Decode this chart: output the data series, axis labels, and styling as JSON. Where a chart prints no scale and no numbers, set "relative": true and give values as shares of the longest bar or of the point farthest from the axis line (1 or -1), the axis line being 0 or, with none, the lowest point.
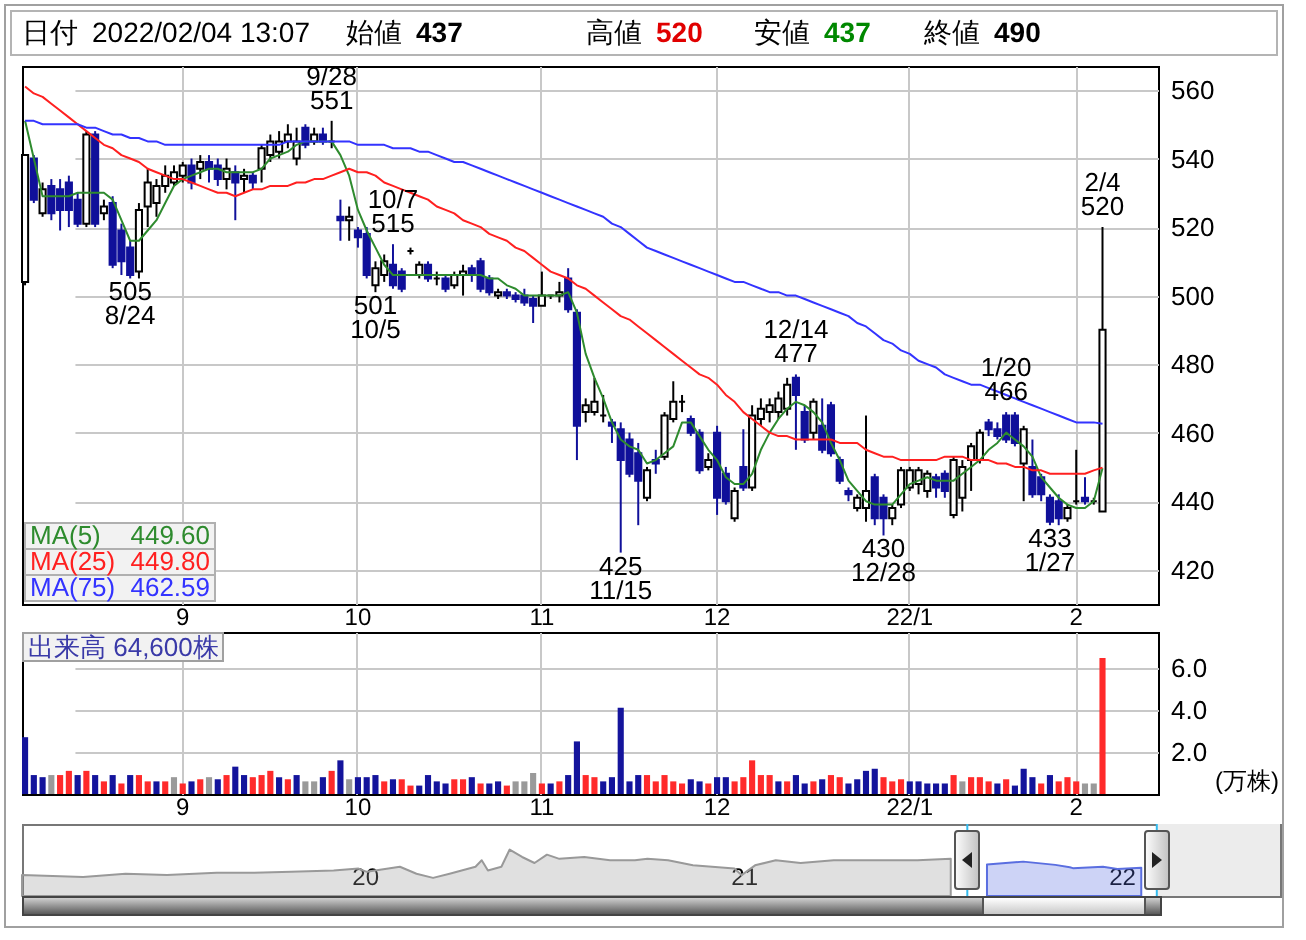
{
  "chart_data": [
    {
      "type": "candlestick",
      "categories": [
        null,
        null,
        null,
        null,
        null,
        null,
        null,
        null,
        null,
        null,
        null,
        null,
        null,
        null,
        null,
        null,
        null,
        null,
        "9",
        null,
        null,
        null,
        null,
        null,
        null,
        null,
        null,
        null,
        null,
        null,
        null,
        null,
        null,
        null,
        null,
        null,
        null,
        null,
        "10",
        null,
        null,
        null,
        null,
        null,
        null,
        null,
        null,
        null,
        null,
        null,
        null,
        null,
        null,
        null,
        null,
        null,
        null,
        null,
        null,
        "11",
        null,
        null,
        null,
        null,
        null,
        null,
        null,
        null,
        null,
        null,
        null,
        null,
        null,
        null,
        null,
        null,
        null,
        null,
        null,
        "12",
        null,
        null,
        null,
        null,
        null,
        null,
        null,
        null,
        null,
        null,
        null,
        null,
        null,
        null,
        null,
        null,
        null,
        null,
        null,
        null,
        null,
        "22/1",
        null,
        null,
        null,
        null,
        null,
        null,
        null,
        null,
        null,
        null,
        null,
        null,
        null,
        null,
        null,
        null,
        null,
        null,
        "2",
        null,
        null,
        null
      ],
      "ohlc": [
        [
          504,
          541,
          503,
          541
        ],
        [
          540,
          541,
          527,
          528
        ],
        [
          524,
          533,
          523,
          531
        ],
        [
          532,
          534,
          522,
          524
        ],
        [
          531,
          534,
          519,
          525
        ],
        [
          533,
          535,
          520,
          525
        ],
        [
          528,
          530,
          520,
          521
        ],
        [
          521,
          548,
          520,
          547
        ],
        [
          547,
          548,
          520,
          521
        ],
        [
          524,
          528,
          522,
          526
        ],
        [
          527,
          529,
          508,
          509
        ],
        [
          519,
          521,
          506,
          510
        ],
        [
          514,
          516,
          505,
          506
        ],
        [
          507,
          527,
          505,
          525
        ],
        [
          526,
          537,
          520,
          533
        ],
        [
          527,
          534,
          523,
          532
        ],
        [
          532,
          538,
          530,
          535
        ],
        [
          533,
          538,
          532,
          536
        ],
        [
          535,
          539,
          533,
          538
        ],
        [
          538,
          540,
          531,
          533
        ],
        [
          537,
          541,
          534,
          539
        ],
        [
          539,
          541,
          533,
          537
        ],
        [
          538,
          540,
          532,
          534
        ],
        [
          534,
          540,
          531,
          537
        ],
        [
          536,
          538,
          522,
          533
        ],
        [
          534,
          537,
          530,
          535
        ],
        [
          535,
          536,
          531,
          533
        ],
        [
          537,
          544,
          533,
          543
        ],
        [
          541,
          547,
          539,
          545
        ],
        [
          542,
          548,
          540,
          545
        ],
        [
          545,
          550,
          543,
          547
        ],
        [
          540,
          549,
          538,
          545
        ],
        [
          549,
          550,
          543,
          544
        ],
        [
          545,
          549,
          544,
          547
        ],
        [
          547,
          549,
          544,
          545
        ],
        [
          545,
          551,
          543,
          545
        ],
        [
          523,
          528,
          516,
          522
        ],
        [
          522,
          526,
          516,
          523
        ],
        [
          519,
          520,
          514,
          517
        ],
        [
          518,
          520,
          505,
          506
        ],
        [
          503,
          510,
          501,
          508
        ],
        [
          506,
          512,
          504,
          510
        ],
        [
          509,
          515,
          502,
          503
        ],
        [
          507,
          508,
          501,
          502
        ],
        [
          513,
          514,
          512,
          513
        ],
        [
          506,
          510,
          505,
          509
        ],
        [
          509,
          510,
          504,
          505
        ],
        [
          505,
          507,
          503,
          505
        ],
        [
          505,
          506,
          501,
          502
        ],
        [
          503,
          507,
          502,
          506
        ],
        [
          506,
          509,
          500,
          507
        ],
        [
          508,
          509,
          504,
          506
        ],
        [
          510,
          511,
          501,
          502
        ],
        [
          505,
          506,
          500,
          501
        ],
        [
          500,
          502,
          499,
          501
        ],
        [
          501,
          502,
          499,
          500
        ],
        [
          500,
          501,
          498,
          499
        ],
        [
          500,
          502,
          497,
          498
        ],
        [
          499,
          500,
          492,
          497
        ],
        [
          497,
          507,
          497,
          500
        ],
        [
          500,
          500,
          499,
          500
        ],
        [
          500,
          504,
          498,
          501
        ],
        [
          505,
          508,
          495,
          496
        ],
        [
          495,
          496,
          452,
          462
        ],
        [
          466,
          470,
          463,
          468
        ],
        [
          466,
          476,
          465,
          469
        ],
        [
          465,
          471,
          463,
          465
        ],
        [
          463,
          464,
          457,
          462
        ],
        [
          461,
          463,
          425,
          452
        ],
        [
          458,
          460,
          447,
          448
        ],
        [
          454,
          457,
          433,
          446
        ],
        [
          441,
          450,
          440,
          449
        ],
        [
          452,
          455,
          448,
          451
        ],
        [
          453,
          466,
          452,
          465
        ],
        [
          464,
          475,
          463,
          469
        ],
        [
          469,
          471,
          466,
          469
        ],
        [
          464,
          465,
          459,
          460
        ],
        [
          460,
          461,
          448,
          449
        ],
        [
          450,
          454,
          449,
          452
        ],
        [
          460,
          462,
          436,
          441
        ],
        [
          448,
          450,
          439,
          440
        ],
        [
          435,
          444,
          434,
          443
        ],
        [
          450,
          461,
          443,
          444
        ],
        [
          444,
          468,
          443,
          465
        ],
        [
          464,
          470,
          462,
          467
        ],
        [
          466,
          470,
          463,
          468
        ],
        [
          466,
          472,
          464,
          470
        ],
        [
          467,
          476,
          465,
          474
        ],
        [
          476,
          477,
          455,
          471
        ],
        [
          466,
          468,
          457,
          458
        ],
        [
          460,
          470,
          458,
          469
        ],
        [
          462,
          470,
          454,
          455
        ],
        [
          468,
          469,
          453,
          454
        ],
        [
          452,
          453,
          445,
          446
        ],
        [
          443,
          444,
          440,
          442
        ],
        [
          438,
          442,
          437,
          441
        ],
        [
          438,
          465,
          434,
          443
        ],
        [
          447,
          448,
          433,
          435
        ],
        [
          441,
          442,
          430,
          435
        ],
        [
          435,
          439,
          433,
          438
        ],
        [
          439,
          450,
          438,
          449
        ],
        [
          444,
          450,
          443,
          449
        ],
        [
          445,
          450,
          442,
          449
        ],
        [
          443,
          449,
          441,
          448
        ],
        [
          447,
          448,
          441,
          444
        ],
        [
          448,
          449,
          441,
          443
        ],
        [
          436,
          453,
          435,
          452
        ],
        [
          441,
          452,
          437,
          450
        ],
        [
          452,
          457,
          443,
          456
        ],
        [
          452,
          461,
          451,
          460
        ],
        [
          463,
          464,
          459,
          461
        ],
        [
          461,
          463,
          458,
          459
        ],
        [
          465,
          466,
          457,
          458
        ],
        [
          465,
          466,
          456,
          457
        ],
        [
          451,
          462,
          440,
          461
        ],
        [
          450,
          458,
          441,
          442
        ],
        [
          447,
          448,
          440,
          442
        ],
        [
          441,
          442,
          433,
          434
        ],
        [
          440,
          442,
          433,
          435
        ],
        [
          435,
          439,
          434,
          438
        ],
        [
          440,
          455,
          439,
          440
        ],
        [
          441,
          447,
          439,
          440
        ],
        [
          440,
          441,
          439,
          440
        ],
        [
          437,
          520,
          437,
          490
        ]
      ],
      "colors": [
        "#ffffff",
        "#10109a",
        "#ffffff",
        "#10109a",
        "#10109a",
        "#10109a",
        "#10109a",
        "#ffffff",
        "#10109a",
        "#ffffff",
        "#10109a",
        "#10109a",
        "#10109a",
        "#ffffff",
        "#ffffff",
        "#ffffff",
        "#ffffff",
        "#ffffff",
        "#ffffff",
        "#10109a",
        "#ffffff",
        "#10109a",
        "#10109a",
        "#ffffff",
        "#10109a",
        "#ffffff",
        "#10109a",
        "#ffffff",
        "#ffffff",
        "#ffffff",
        "#ffffff",
        "#ffffff",
        "#10109a",
        "#ffffff",
        "#10109a",
        "#000000",
        "#10109a",
        "#ffffff",
        "#10109a",
        "#10109a",
        "#ffffff",
        "#ffffff",
        "#10109a",
        "#10109a",
        "#000000",
        "#ffffff",
        "#10109a",
        "#000000",
        "#10109a",
        "#ffffff",
        "#ffffff",
        "#10109a",
        "#10109a",
        "#10109a",
        "#ffffff",
        "#10109a",
        "#10109a",
        "#10109a",
        "#10109a",
        "#ffffff",
        "#000000",
        "#ffffff",
        "#10109a",
        "#10109a",
        "#ffffff",
        "#ffffff",
        "#000000",
        "#10109a",
        "#10109a",
        "#10109a",
        "#10109a",
        "#ffffff",
        "#10109a",
        "#ffffff",
        "#ffffff",
        "#000000",
        "#10109a",
        "#10109a",
        "#ffffff",
        "#10109a",
        "#10109a",
        "#ffffff",
        "#10109a",
        "#ffffff",
        "#ffffff",
        "#ffffff",
        "#ffffff",
        "#ffffff",
        "#10109a",
        "#10109a",
        "#ffffff",
        "#10109a",
        "#10109a",
        "#10109a",
        "#10109a",
        "#ffffff",
        "#ffffff",
        "#10109a",
        "#10109a",
        "#ffffff",
        "#ffffff",
        "#ffffff",
        "#ffffff",
        "#ffffff",
        "#10109a",
        "#10109a",
        "#ffffff",
        "#ffffff",
        "#ffffff",
        "#ffffff",
        "#10109a",
        "#10109a",
        "#10109a",
        "#10109a",
        "#ffffff",
        "#10109a",
        "#10109a",
        "#10109a",
        "#10109a",
        "#ffffff",
        "#000000",
        "#10109a",
        "#000000",
        "#ffffff"
      ],
      "ylim": [
        410,
        567
      ],
      "yticks": [
        420,
        440,
        460,
        480,
        500,
        520,
        540,
        560
      ],
      "grid": true,
      "legend": "bottom left",
      "series": [
        {
          "type": "line",
          "name": "MA(5) 449.60",
          "color": "#2e8b2e",
          "values": [
            551,
            540,
            529,
            529,
            529,
            529,
            530,
            530,
            530,
            530,
            528,
            522,
            516,
            516,
            519,
            522,
            527,
            532,
            534,
            535,
            536,
            537,
            537,
            536,
            536,
            536,
            536,
            537,
            540,
            541,
            542,
            544,
            545,
            545,
            545,
            545,
            541,
            535,
            525,
            519,
            514,
            509,
            506,
            506,
            506,
            506,
            506,
            506,
            506,
            506,
            506,
            506,
            506,
            505,
            505,
            503,
            502,
            500,
            500,
            500,
            500,
            500,
            501,
            495,
            483,
            476,
            470,
            463,
            458,
            456,
            455,
            451,
            452,
            454,
            456,
            463,
            463,
            459,
            455,
            452,
            447,
            445,
            445,
            448,
            455,
            460,
            464,
            467,
            469,
            468,
            466,
            463,
            457,
            452,
            446,
            443,
            440,
            439,
            439,
            439,
            442,
            445,
            446,
            447,
            446,
            446,
            446,
            448,
            450,
            452,
            455,
            457,
            460,
            458,
            456,
            453,
            447,
            444,
            441,
            439,
            438,
            438,
            440,
            449.6
          ]
        },
        {
          "type": "line",
          "name": "MA(25) 449.80",
          "color": "#ff2020",
          "values": [
            561,
            559,
            558,
            556,
            554,
            552,
            550,
            548,
            546,
            544,
            543,
            541,
            540,
            539,
            537,
            536,
            535,
            534,
            534,
            533,
            532,
            531,
            530,
            530,
            529,
            530,
            531,
            531,
            532,
            532,
            532,
            533,
            533,
            534,
            534,
            535,
            536,
            537,
            536,
            536,
            535,
            533,
            532,
            531,
            530,
            529,
            528,
            526,
            525,
            524,
            522,
            521,
            520,
            518,
            517,
            516,
            514,
            513,
            511,
            509,
            507,
            506,
            505,
            503,
            502,
            500,
            498,
            496,
            494,
            493,
            491,
            489,
            487,
            485,
            483,
            481,
            479,
            477,
            476,
            474,
            471,
            469,
            466,
            464,
            462,
            460,
            459,
            459,
            458,
            458,
            458,
            458,
            458,
            457,
            457,
            457,
            455,
            454,
            453,
            453,
            452,
            452,
            452,
            452,
            452,
            453,
            453,
            453,
            452,
            452,
            452,
            451,
            451,
            450,
            450,
            449,
            449,
            448,
            448,
            448,
            448,
            448,
            449,
            449.8
          ]
        },
        {
          "type": "line",
          "name": "MA(75) 462.59",
          "color": "#3333ff",
          "values": [
            551,
            551,
            550,
            550,
            550,
            550,
            550,
            549,
            549,
            548,
            547,
            547,
            546,
            546,
            545,
            545,
            544,
            544,
            544,
            544,
            544,
            544,
            544,
            544,
            544,
            544,
            544,
            544,
            544,
            544,
            545,
            545,
            545,
            545,
            545,
            545,
            545,
            545,
            544,
            544,
            544,
            544,
            543,
            543,
            543,
            542,
            542,
            541,
            540,
            539,
            539,
            538,
            537,
            536,
            535,
            534,
            533,
            532,
            531,
            530,
            529,
            528,
            527,
            526,
            525,
            524,
            523,
            521,
            520,
            518,
            516,
            514,
            513,
            512,
            511,
            510,
            509,
            508,
            507,
            506,
            505,
            504,
            504,
            503,
            502,
            501,
            501,
            500,
            500,
            499,
            498,
            497,
            496,
            495,
            494,
            492,
            491,
            489,
            487,
            486,
            484,
            483,
            481,
            480,
            479,
            477,
            476,
            475,
            474,
            474,
            473,
            472,
            471,
            470,
            469,
            468,
            467,
            466,
            465,
            464,
            463,
            463,
            463,
            462.6
          ]
        }
      ],
      "annotations": [
        "日付",
        "2022/02/04 13:07",
        "始値",
        "437",
        "高値",
        "520",
        "安値",
        "437",
        "終値",
        "490",
        {
          "text": "505\n8/24",
          "y": 505
        },
        {
          "text": "9/28\n551",
          "y": 551
        },
        {
          "text": "501\n10/5",
          "y": 501
        },
        {
          "text": "10/7\n515",
          "y": 515
        },
        {
          "text": "425\n11/15",
          "y": 425
        },
        {
          "text": "12/14\n477",
          "y": 477
        },
        {
          "text": "430\n12/28",
          "y": 430
        },
        {
          "text": "1/20\n466",
          "y": 466
        },
        {
          "text": "433\n1/27",
          "y": 433
        },
        {
          "text": "2/4\n520",
          "y": 520
        }
      ]
    },
    {
      "type": "bar",
      "categories": [
        null,
        null,
        null,
        null,
        null,
        null,
        null,
        null,
        null,
        null,
        null,
        null,
        null,
        null,
        null,
        null,
        null,
        null,
        "9",
        null,
        null,
        null,
        null,
        null,
        null,
        null,
        null,
        null,
        null,
        null,
        null,
        null,
        null,
        null,
        null,
        null,
        null,
        null,
        "10",
        null,
        null,
        null,
        null,
        null,
        null,
        null,
        null,
        null,
        null,
        null,
        null,
        null,
        null,
        null,
        null,
        null,
        null,
        null,
        null,
        "11",
        null,
        null,
        null,
        null,
        null,
        null,
        null,
        null,
        null,
        null,
        null,
        null,
        null,
        null,
        null,
        null,
        null,
        null,
        null,
        "12",
        null,
        null,
        null,
        null,
        null,
        null,
        null,
        null,
        null,
        null,
        null,
        null,
        null,
        null,
        null,
        null,
        null,
        null,
        null,
        null,
        null,
        "22/1",
        null,
        null,
        null,
        null,
        null,
        null,
        null,
        null,
        null,
        null,
        null,
        null,
        null,
        null,
        null,
        null,
        null,
        null,
        "2",
        null,
        null,
        null
      ],
      "values": [
        2.7,
        0.9,
        0.8,
        0.9,
        0.9,
        1.1,
        0.9,
        1.1,
        0.9,
        0.6,
        0.9,
        0.5,
        0.9,
        0.9,
        0.6,
        0.6,
        0.6,
        0.8,
        0.5,
        0.6,
        0.7,
        0.8,
        0.7,
        0.9,
        1.3,
        0.9,
        0.8,
        0.9,
        1.1,
        0.8,
        0.7,
        0.9,
        0.6,
        0.6,
        0.8,
        1.1,
        1.6,
        0.7,
        0.8,
        0.8,
        0.9,
        0.6,
        0.7,
        0.7,
        0.4,
        0.4,
        0.9,
        0.6,
        0.5,
        0.7,
        0.7,
        0.8,
        0.5,
        0.5,
        0.6,
        0.4,
        0.6,
        0.6,
        1.0,
        0.5,
        0.5,
        0.6,
        0.9,
        2.5,
        0.9,
        0.8,
        0.6,
        0.8,
        4.1,
        0.6,
        0.9,
        0.9,
        0.6,
        0.9,
        0.6,
        0.5,
        0.7,
        0.6,
        0.5,
        0.8,
        0.8,
        0.6,
        0.8,
        1.6,
        0.9,
        0.9,
        0.6,
        0.6,
        0.9,
        0.5,
        0.6,
        0.7,
        0.9,
        0.8,
        0.5,
        0.7,
        1.1,
        1.2,
        0.8,
        0.6,
        0.7,
        0.6,
        0.6,
        0.5,
        0.5,
        0.5,
        0.9,
        0.6,
        0.8,
        0.8,
        0.6,
        0.5,
        0.7,
        0.4,
        1.2,
        0.8,
        0.5,
        0.9,
        0.6,
        0.8,
        0.6,
        0.5,
        0.5,
        6.46
      ],
      "colors": [
        "#14149c",
        "#14149c",
        "#14149c",
        "#9a9a9a",
        "#ff2a2a",
        "#ff2a2a",
        "#14149c",
        "#ff2a2a",
        "#14149c",
        "#ff2a2a",
        "#14149c",
        "#ff2a2a",
        "#14149c",
        "#ff2a2a",
        "#ff2a2a",
        "#14149c",
        "#ff2a2a",
        "#9a9a9a",
        "#ff2a2a",
        "#14149c",
        "#ff2a2a",
        "#9a9a9a",
        "#14149c",
        "#ff2a2a",
        "#14149c",
        "#14149c",
        "#ff2a2a",
        "#ff2a2a",
        "#ff2a2a",
        "#14149c",
        "#ff2a2a",
        "#14149c",
        "#9a9a9a",
        "#9a9a9a",
        "#14149c",
        "#ff2a2a",
        "#14149c",
        "#9a9a9a",
        "#14149c",
        "#14149c",
        "#14149c",
        "#ff2a2a",
        "#14149c",
        "#ff2a2a",
        "#ff2a2a",
        "#14149c",
        "#14149c",
        "#14149c",
        "#14149c",
        "#ff2a2a",
        "#ff2a2a",
        "#14149c",
        "#ff2a2a",
        "#14149c",
        "#14149c",
        "#ff2a2a",
        "#9a9a9a",
        "#9a9a9a",
        "#9a9a9a",
        "#ff2a2a",
        "#14149c",
        "#ff2a2a",
        "#14149c",
        "#14149c",
        "#ff2a2a",
        "#ff2a2a",
        "#14149c",
        "#14149c",
        "#14149c",
        "#14149c",
        "#14149c",
        "#ff2a2a",
        "#ff2a2a",
        "#ff2a2a",
        "#ff2a2a",
        "#ff2a2a",
        "#14149c",
        "#14149c",
        "#ff2a2a",
        "#14149c",
        "#14149c",
        "#ff2a2a",
        "#ff2a2a",
        "#ff2a2a",
        "#ff2a2a",
        "#ff2a2a",
        "#14149c",
        "#ff2a2a",
        "#14149c",
        "#14149c",
        "#ff2a2a",
        "#14149c",
        "#ff2a2a",
        "#ff2a2a",
        "#14149c",
        "#14149c",
        "#14149c",
        "#14149c",
        "#ff2a2a",
        "#ff2a2a",
        "#ff2a2a",
        "#14149c",
        "#14149c",
        "#14149c",
        "#14149c",
        "#14149c",
        "#ff2a2a",
        "#9a9a9a",
        "#ff2a2a",
        "#ff2a2a",
        "#ff2a2a",
        "#14149c",
        "#ff2a2a",
        "#14149c",
        "#14149c",
        "#14149c",
        "#ff2a2a",
        "#14149c",
        "#ff2a2a",
        "#ff2a2a",
        "#ff2a2a",
        "#9a9a9a",
        "#9a9a9a",
        "#ff2a2a"
      ],
      "ylim": [
        0,
        7.7
      ],
      "yticks": [
        {
          "value": 2,
          "label": "2.0"
        },
        {
          "value": 4,
          "label": "4.0"
        },
        {
          "value": 6,
          "label": "6.0"
        }
      ],
      "ylabel": "(万株)",
      "grid": true,
      "annotations": [
        "出来高 64,600株"
      ]
    },
    {
      "type": "area",
      "relative": true,
      "xlim": [
        "2019-02-04",
        "2022-06-03"
      ],
      "xticks": [
        {
          "value": "2020-01-01",
          "label": "20"
        },
        {
          "value": "2021-01-01",
          "label": "21"
        },
        {
          "value": "2022-01-01",
          "label": "22"
        }
      ],
      "tick_labels": "x",
      "series": [
        {
          "color": "#999999",
          "x": [
            "2019-02-04",
            "2019-04-04",
            "2019-05-15",
            "2019-06-24",
            "2019-08-11",
            "2019-09-12",
            "2019-10-22",
            "2019-12-02",
            "2019-12-26",
            "2020-01-03",
            "2020-02-04",
            "2020-02-20",
            "2020-03-07",
            "2020-03-23",
            "2020-04-17",
            "2020-04-23",
            "2020-04-29",
            "2020-05-12",
            "2020-05-20",
            "2020-06-01",
            "2020-06-13",
            "2020-06-25",
            "2020-07-07",
            "2020-07-31",
            "2020-08-25",
            "2020-09-18",
            "2020-09-30",
            "2020-10-20",
            "2020-11-13",
            "2020-12-23",
            "2020-12-30",
            "2021-01-12",
            "2021-02-01",
            "2021-02-25",
            "2021-03-29",
            "2021-05-09",
            "2021-06-18",
            "2021-07-20"
          ],
          "values": [
            0.45,
            0.41,
            0.48,
            0.45,
            0.5,
            0.5,
            0.52,
            0.55,
            0.59,
            0.52,
            0.63,
            0.48,
            0.39,
            0.48,
            0.63,
            0.77,
            0.55,
            0.63,
            1,
            0.84,
            0.71,
            0.89,
            0.8,
            0.84,
            0.77,
            0.77,
            0.8,
            0.77,
            0.66,
            0.59,
            0.45,
            0.66,
            0.77,
            0.71,
            0.77,
            0.77,
            0.77,
            0.8
          ]
        },
        {
          "color": "#5a6ee0",
          "x": [
            "2021-08-24",
            "2021-09-28",
            "2021-10-29",
            "2021-11-12",
            "2021-11-15",
            "2021-12-14",
            "2021-12-28",
            "2022-01-20"
          ],
          "values": [
            0.68,
            0.74,
            0.67,
            0.62,
            0.6,
            0.63,
            0.58,
            0.61
          ]
        }
      ],
      "bands": [
        {
          "axis": "x",
          "from": "2022-02-04",
          "to": "2022-06-03",
          "color": "#ececec"
        }
      ],
      "ref_lines": [
        {
          "axis": "x",
          "value": "2021-08-05",
          "color": "#33bbee"
        },
        {
          "axis": "x",
          "value": "2022-02-04",
          "color": "#33bbee"
        }
      ]
    }
  ]
}
